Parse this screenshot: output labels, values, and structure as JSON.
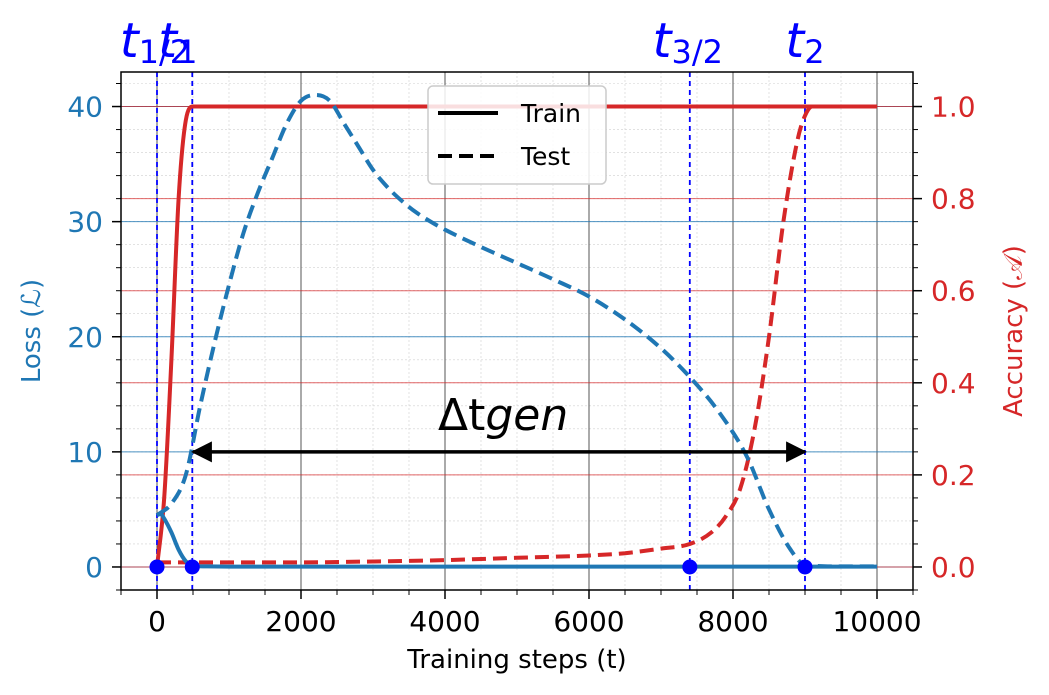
{
  "chart_data": {
    "type": "line",
    "xlabel": "Training steps (t)",
    "ylabel_left": "Loss (ℒ)",
    "ylabel_right": "Accuracy (𝒜)",
    "xlim": [
      -500,
      10500
    ],
    "ylim_left": [
      -2,
      43
    ],
    "ylim_right": [
      -0.05,
      1.075
    ],
    "xticks": [
      0,
      2000,
      4000,
      6000,
      8000,
      10000
    ],
    "yticks_left": [
      0,
      10,
      20,
      30,
      40
    ],
    "yticks_right": [
      0.0,
      0.2,
      0.4,
      0.6,
      0.8,
      1.0
    ],
    "legend": {
      "position": "top-center",
      "entries": [
        {
          "label": "Train",
          "style": "solid"
        },
        {
          "label": "Test",
          "style": "dashed"
        }
      ]
    },
    "grid": true,
    "colors": {
      "loss": "#1f77b4",
      "accuracy": "#d62728",
      "markers": "#0000ff"
    },
    "series": [
      {
        "metric": "loss",
        "split": "train",
        "axis": "left",
        "x": [
          0,
          50,
          100,
          200,
          300,
          400,
          500,
          700,
          1000,
          2000,
          4000,
          6000,
          8000,
          10000
        ],
        "y": [
          4.5,
          4.6,
          4.2,
          3.0,
          1.5,
          0.5,
          0.1,
          0.05,
          0.03,
          0.03,
          0.03,
          0.03,
          0.03,
          0.03
        ]
      },
      {
        "metric": "loss",
        "split": "test",
        "axis": "left",
        "x": [
          0,
          200,
          400,
          600,
          800,
          1000,
          1200,
          1400,
          1600,
          1800,
          2000,
          2200,
          2400,
          2600,
          2800,
          3000,
          3200,
          3400,
          3600,
          3800,
          4000,
          4500,
          5000,
          5500,
          6000,
          6500,
          7000,
          7400,
          7800,
          8200,
          8500,
          8800,
          9000,
          9500,
          10000
        ],
        "y": [
          4.5,
          5.5,
          8.0,
          14.0,
          19.5,
          24.5,
          29.0,
          32.5,
          35.5,
          38.5,
          40.5,
          41.0,
          40.5,
          38.5,
          36.5,
          34.5,
          33.0,
          31.8,
          30.8,
          30.0,
          29.3,
          27.8,
          26.4,
          25.0,
          23.5,
          21.5,
          19.0,
          16.5,
          13.5,
          9.5,
          5.0,
          1.5,
          0.2,
          0.05,
          0.05
        ]
      },
      {
        "metric": "accuracy",
        "split": "train",
        "axis": "right",
        "x": [
          0,
          100,
          200,
          300,
          400,
          500,
          600,
          1000,
          2000,
          4000,
          6000,
          8000,
          10000
        ],
        "y": [
          0.0,
          0.15,
          0.45,
          0.8,
          0.97,
          1.0,
          1.0,
          1.0,
          1.0,
          1.0,
          1.0,
          1.0,
          1.0
        ]
      },
      {
        "metric": "accuracy",
        "split": "test",
        "axis": "right",
        "x": [
          0,
          500,
          1000,
          2000,
          3000,
          4000,
          5000,
          6000,
          6500,
          7000,
          7400,
          7700,
          7900,
          8100,
          8300,
          8500,
          8700,
          8900,
          9000,
          9100,
          9500,
          10000
        ],
        "y": [
          0.01,
          0.01,
          0.01,
          0.01,
          0.012,
          0.015,
          0.02,
          0.025,
          0.03,
          0.04,
          0.05,
          0.075,
          0.11,
          0.17,
          0.3,
          0.5,
          0.75,
          0.93,
          0.98,
          1.0,
          1.0,
          1.0
        ]
      }
    ],
    "vlines": [
      {
        "x": 0,
        "label": "t",
        "sub": "1/2"
      },
      {
        "x": 490,
        "label": "t",
        "sub": "1"
      },
      {
        "x": 7400,
        "label": "t",
        "sub": "3/2"
      },
      {
        "x": 9000,
        "label": "t",
        "sub": "2"
      }
    ],
    "annotation": {
      "text": "Δt",
      "sub": "gen",
      "x_from": 500,
      "x_to": 9000,
      "y": 10
    }
  }
}
